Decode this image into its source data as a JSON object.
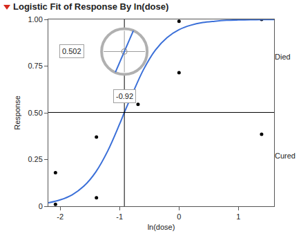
{
  "chart_data": {
    "type": "scatter",
    "title": "Logistic Fit of Response By ln(dose)",
    "x_label": "ln(dose)",
    "y_label": "Response",
    "series": [
      {
        "type": "scatter",
        "marker": "circle",
        "color": "#000000",
        "x": [
          -2.08,
          -2.08,
          -1.39,
          -1.39,
          -0.69,
          0,
          0,
          1.39,
          1.39
        ],
        "values": [
          0.18,
          0.01,
          0.37,
          0.045,
          0.545,
          0.99,
          0.715,
          1.0,
          0.385
        ]
      },
      {
        "type": "line",
        "line_style": "solid",
        "color": "#3a6fd8",
        "x": [
          -2.2,
          -2.0,
          -1.8,
          -1.6,
          -1.4,
          -1.2,
          -1.0,
          -0.92,
          -0.8,
          -0.6,
          -0.4,
          -0.2,
          0,
          0.2,
          0.4,
          0.6,
          0.8,
          1.0,
          1.2,
          1.4,
          1.6
        ],
        "values": [
          0.018,
          0.034,
          0.061,
          0.108,
          0.184,
          0.296,
          0.44,
          0.502,
          0.59,
          0.73,
          0.835,
          0.903,
          0.945,
          0.969,
          0.983,
          0.99,
          0.995,
          0.997,
          0.998,
          0.999,
          0.9995
        ]
      }
    ],
    "xlim": [
      -2.2,
      1.6
    ],
    "ylim": [
      0,
      1
    ],
    "xticks": [
      -2,
      -1,
      0,
      1
    ],
    "yticks": [
      0,
      0.25,
      {
        "value": 0.5,
        "label": "0.50"
      },
      0.75,
      {
        "value": 1,
        "label": "1.00"
      }
    ],
    "y2lim": [
      0,
      1
    ],
    "y2ticks": [
      {
        "value": 0.27,
        "label": "Cured"
      },
      {
        "value": 0.8,
        "label": "Died"
      }
    ],
    "grid": false,
    "crosshair": {
      "x": -0.92,
      "y": 0.502
    }
  }
}
